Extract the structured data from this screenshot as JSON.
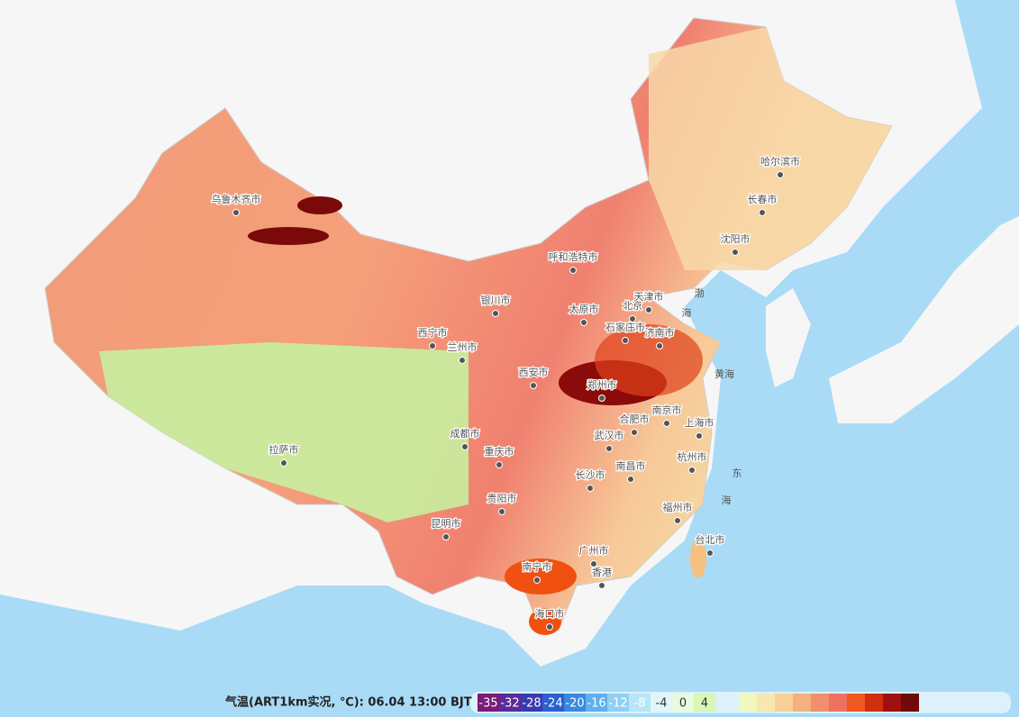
{
  "map": {
    "legend_title": "气温(ART1km实况, ℃): 06.04 13:00 BJT",
    "legend": {
      "values": [
        -35,
        -32,
        -28,
        -24,
        -20,
        -16,
        -12,
        -8,
        -4,
        0,
        4
      ],
      "colors": [
        "#7a1a7a",
        "#5a2a9a",
        "#3a3ab0",
        "#2c5fcf",
        "#3a88e0",
        "#5fb0ef",
        "#8fd0f5",
        "#b8e6f8",
        "#e0f6fb",
        "#e8fbe0",
        "#d8f7b8"
      ]
    },
    "cities": [
      "乌鲁木齐市",
      "哈尔滨市",
      "长春市",
      "沈阳市",
      "呼和浩特市",
      "北京",
      "天津市",
      "银川市",
      "太原市",
      "石家庄市",
      "济南市",
      "西宁市",
      "兰州市",
      "西安市",
      "郑州市",
      "合肥市",
      "南京市",
      "上海市",
      "武汉市",
      "成都市",
      "重庆市",
      "杭州市",
      "拉萨市",
      "长沙市",
      "南昌市",
      "贵阳市",
      "福州市",
      "昆明市",
      "台北市",
      "广州市",
      "南宁市",
      "香港",
      "海口市"
    ],
    "seas": [
      "渤",
      "海",
      "黄海",
      "东",
      "海"
    ]
  }
}
